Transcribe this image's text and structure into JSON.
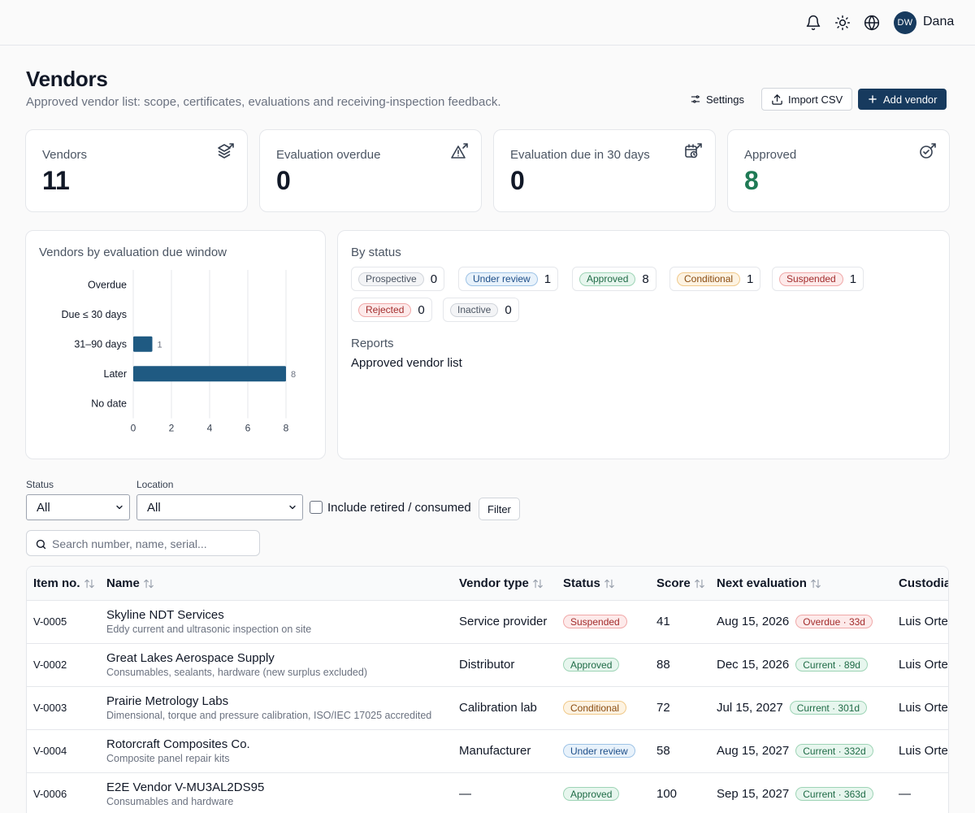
{
  "header": {
    "user_initials": "DW",
    "user_name": "Dana",
    "icons": [
      "bell-icon",
      "sun-icon",
      "globe-icon"
    ]
  },
  "page": {
    "title": "Vendors",
    "subtitle": "Approved vendor list: scope, certificates, evaluations and receiving-inspection feedback.",
    "settings_label": "Settings",
    "import_label": "Import CSV",
    "add_label": "Add vendor"
  },
  "stats": [
    {
      "label": "Vendors",
      "value": "11",
      "icon": "layers-icon"
    },
    {
      "label": "Evaluation overdue",
      "value": "0",
      "icon": "warning-icon"
    },
    {
      "label": "Evaluation due in 30 days",
      "value": "0",
      "icon": "calendar-clock-icon"
    },
    {
      "label": "Approved",
      "value": "8",
      "icon": "check-circle-icon"
    }
  ],
  "chart_panel": {
    "title": "Vendors by evaluation due window"
  },
  "chart_data": {
    "type": "bar",
    "orientation": "horizontal",
    "categories": [
      "Overdue",
      "Due ≤ 30 days",
      "31–90 days",
      "Later",
      "No date"
    ],
    "values": [
      0,
      0,
      1,
      8,
      0
    ],
    "xlim": [
      0,
      8
    ],
    "xticks": [
      0,
      2,
      4,
      6,
      8
    ],
    "grid": true,
    "color": "#1f5a82"
  },
  "status_panel": {
    "title": "By status",
    "statuses": [
      {
        "label": "Prospective",
        "count": "0",
        "fg": "#4b5563",
        "bg": "#f3f4f6",
        "border": "#d1d5db"
      },
      {
        "label": "Under review",
        "count": "1",
        "fg": "#1d4e89",
        "bg": "#e8f2fb",
        "border": "#9ec3e6"
      },
      {
        "label": "Approved",
        "count": "8",
        "fg": "#1f6b46",
        "bg": "#e7f6ee",
        "border": "#9ed4b6"
      },
      {
        "label": "Conditional",
        "count": "1",
        "fg": "#8a4b0f",
        "bg": "#fdf3e2",
        "border": "#f0c98a"
      },
      {
        "label": "Suspended",
        "count": "1",
        "fg": "#a32d2d",
        "bg": "#fdeaea",
        "border": "#f0a8a8"
      },
      {
        "label": "Rejected",
        "count": "0",
        "fg": "#a32d2d",
        "bg": "#fdeaea",
        "border": "#f0a8a8"
      },
      {
        "label": "Inactive",
        "count": "0",
        "fg": "#4b5563",
        "bg": "#f3f4f6",
        "border": "#d1d5db"
      }
    ],
    "reports_title": "Reports",
    "reports_link": "Approved vendor list"
  },
  "filters": {
    "status_label": "Status",
    "status_value": "All",
    "location_label": "Location",
    "location_value": "All",
    "retired_label": "Include retired / consumed",
    "filter_button": "Filter",
    "search_placeholder": "Search number, name, serial..."
  },
  "table": {
    "columns": [
      "Item no.",
      "Name",
      "Vendor type",
      "Status",
      "Score",
      "Next evaluation",
      "Custodian"
    ],
    "rows": [
      {
        "item": "V-0005",
        "name": "Skyline NDT Services",
        "desc": "Eddy current and ultrasonic inspection on site",
        "type": "Service provider",
        "status": "Suspended",
        "score": "41",
        "next": "Aug 15, 2026",
        "eval": "Overdue · 33d",
        "eval_kind": "overdue",
        "custodian": "Luis Ortega"
      },
      {
        "item": "V-0002",
        "name": "Great Lakes Aerospace Supply",
        "desc": "Consumables, sealants, hardware (new surplus excluded)",
        "type": "Distributor",
        "status": "Approved",
        "score": "88",
        "next": "Dec 15, 2026",
        "eval": "Current · 89d",
        "eval_kind": "current",
        "custodian": "Luis Ortega"
      },
      {
        "item": "V-0003",
        "name": "Prairie Metrology Labs",
        "desc": "Dimensional, torque and pressure calibration, ISO/IEC 17025 accredited",
        "type": "Calibration lab",
        "status": "Conditional",
        "score": "72",
        "next": "Jul 15, 2027",
        "eval": "Current · 301d",
        "eval_kind": "current",
        "custodian": "Luis Ortega"
      },
      {
        "item": "V-0004",
        "name": "Rotorcraft Composites Co.",
        "desc": "Composite panel repair kits",
        "type": "Manufacturer",
        "status": "Under review",
        "score": "58",
        "next": "Aug 15, 2027",
        "eval": "Current · 332d",
        "eval_kind": "current",
        "custodian": "Luis Ortega"
      },
      {
        "item": "V-0006",
        "name": "E2E Vendor V-MU3AL2DS95",
        "desc": "Consumables and hardware",
        "type": "—",
        "status": "Approved",
        "score": "100",
        "next": "Sep 15, 2027",
        "eval": "Current · 363d",
        "eval_kind": "current",
        "custodian": "—"
      }
    ]
  },
  "colors": {
    "brand": "#173a5e",
    "bar": "#1f5a82",
    "approved_value": "#1f7a55",
    "overdue": "#a32d2d",
    "current": "#1f6b46"
  }
}
